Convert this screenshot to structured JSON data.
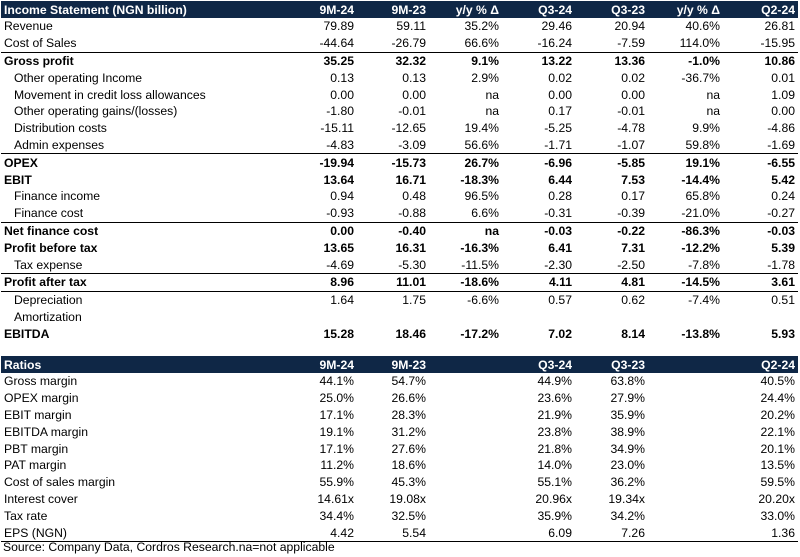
{
  "income": {
    "title": "Income Statement (NGN billion)",
    "columns": [
      "9M-24",
      "9M-23",
      "y/y % Δ",
      "Q3-24",
      "Q3-23",
      "y/y % Δ",
      "Q2-24"
    ],
    "rows": [
      {
        "label": "Revenue",
        "values": [
          "79.89",
          "59.11",
          "35.2%",
          "29.46",
          "20.94",
          "40.6%",
          "26.81"
        ]
      },
      {
        "label": "Cost of Sales",
        "values": [
          "-44.64",
          "-26.79",
          "66.6%",
          "-16.24",
          "-7.59",
          "114.0%",
          "-15.95"
        ]
      },
      {
        "label": "Gross profit",
        "values": [
          "35.25",
          "32.32",
          "9.1%",
          "13.22",
          "13.36",
          "-1.0%",
          "10.86"
        ]
      },
      {
        "label": "Other operating Income",
        "values": [
          "0.13",
          "0.13",
          "2.9%",
          "0.02",
          "0.02",
          "-36.7%",
          "0.01"
        ]
      },
      {
        "label": "Movement in credit loss allowances",
        "values": [
          "0.00",
          "0.00",
          "na",
          "0.00",
          "0.00",
          "na",
          "1.09"
        ]
      },
      {
        "label": "Other operating gains/(losses)",
        "values": [
          "-1.80",
          "-0.01",
          "na",
          "0.17",
          "-0.01",
          "na",
          "0.00"
        ]
      },
      {
        "label": "Distribution costs",
        "values": [
          "-15.11",
          "-12.65",
          "19.4%",
          "-5.25",
          "-4.78",
          "9.9%",
          "-4.86"
        ]
      },
      {
        "label": "Admin expenses",
        "values": [
          "-4.83",
          "-3.09",
          "56.6%",
          "-1.71",
          "-1.07",
          "59.8%",
          "-1.69"
        ]
      },
      {
        "label": "OPEX",
        "values": [
          "-19.94",
          "-15.73",
          "26.7%",
          "-6.96",
          "-5.85",
          "19.1%",
          "-6.55"
        ]
      },
      {
        "label": "EBIT",
        "values": [
          "13.64",
          "16.71",
          "-18.3%",
          "6.44",
          "7.53",
          "-14.4%",
          "5.42"
        ]
      },
      {
        "label": "Finance income",
        "values": [
          "0.94",
          "0.48",
          "96.5%",
          "0.28",
          "0.17",
          "65.8%",
          "0.24"
        ]
      },
      {
        "label": "Finance cost",
        "values": [
          "-0.93",
          "-0.88",
          "6.6%",
          "-0.31",
          "-0.39",
          "-21.0%",
          "-0.27"
        ]
      },
      {
        "label": "Net finance cost",
        "values": [
          "0.00",
          "-0.40",
          "na",
          "-0.03",
          "-0.22",
          "-86.3%",
          "-0.03"
        ]
      },
      {
        "label": "Profit before tax",
        "values": [
          "13.65",
          "16.31",
          "-16.3%",
          "6.41",
          "7.31",
          "-12.2%",
          "5.39"
        ]
      },
      {
        "label": "Tax expense",
        "values": [
          "-4.69",
          "-5.30",
          "-11.5%",
          "-2.30",
          "-2.50",
          "-7.8%",
          "-1.78"
        ]
      },
      {
        "label": "Profit after tax",
        "values": [
          "8.96",
          "11.01",
          "-18.6%",
          "4.11",
          "4.81",
          "-14.5%",
          "3.61"
        ]
      },
      {
        "label": "Depreciation",
        "values": [
          "1.64",
          "1.75",
          "-6.6%",
          "0.57",
          "0.62",
          "-7.4%",
          "0.51"
        ]
      },
      {
        "label": "Amortization",
        "values": [
          "",
          "",
          "",
          "",
          "",
          "",
          ""
        ]
      },
      {
        "label": "EBITDA",
        "values": [
          "15.28",
          "18.46",
          "-17.2%",
          "7.02",
          "8.14",
          "-13.8%",
          "5.93"
        ]
      }
    ]
  },
  "ratios": {
    "title": "Ratios",
    "columns": [
      "9M-24",
      "9M-23",
      "",
      "Q3-24",
      "Q3-23",
      "",
      "Q2-24"
    ],
    "rows": [
      {
        "label": "Gross margin",
        "values": [
          "44.1%",
          "54.7%",
          "",
          "44.9%",
          "63.8%",
          "",
          "40.5%"
        ]
      },
      {
        "label": "OPEX margin",
        "values": [
          "25.0%",
          "26.6%",
          "",
          "23.6%",
          "27.9%",
          "",
          "24.4%"
        ]
      },
      {
        "label": "EBIT margin",
        "values": [
          "17.1%",
          "28.3%",
          "",
          "21.9%",
          "35.9%",
          "",
          "20.2%"
        ]
      },
      {
        "label": "EBITDA margin",
        "values": [
          "19.1%",
          "31.2%",
          "",
          "23.8%",
          "38.9%",
          "",
          "22.1%"
        ]
      },
      {
        "label": "PBT margin",
        "values": [
          "17.1%",
          "27.6%",
          "",
          "21.8%",
          "34.9%",
          "",
          "20.1%"
        ]
      },
      {
        "label": "PAT margin",
        "values": [
          "11.2%",
          "18.6%",
          "",
          "14.0%",
          "23.0%",
          "",
          "13.5%"
        ]
      },
      {
        "label": "Cost of sales margin",
        "values": [
          "55.9%",
          "45.3%",
          "",
          "55.1%",
          "36.2%",
          "",
          "59.5%"
        ]
      },
      {
        "label": "Interest cover",
        "values": [
          "14.61x",
          "19.08x",
          "",
          "20.96x",
          "19.34x",
          "",
          "20.20x"
        ]
      },
      {
        "label": "Tax rate",
        "values": [
          "34.4%",
          "32.5%",
          "",
          "35.9%",
          "34.2%",
          "",
          "33.0%"
        ]
      },
      {
        "label": "EPS (NGN)",
        "values": [
          "4.42",
          "5.54",
          "",
          "6.09",
          "7.26",
          "",
          "1.36"
        ]
      }
    ]
  },
  "source": "Source: Company Data, Cordros Research.na=not applicable"
}
